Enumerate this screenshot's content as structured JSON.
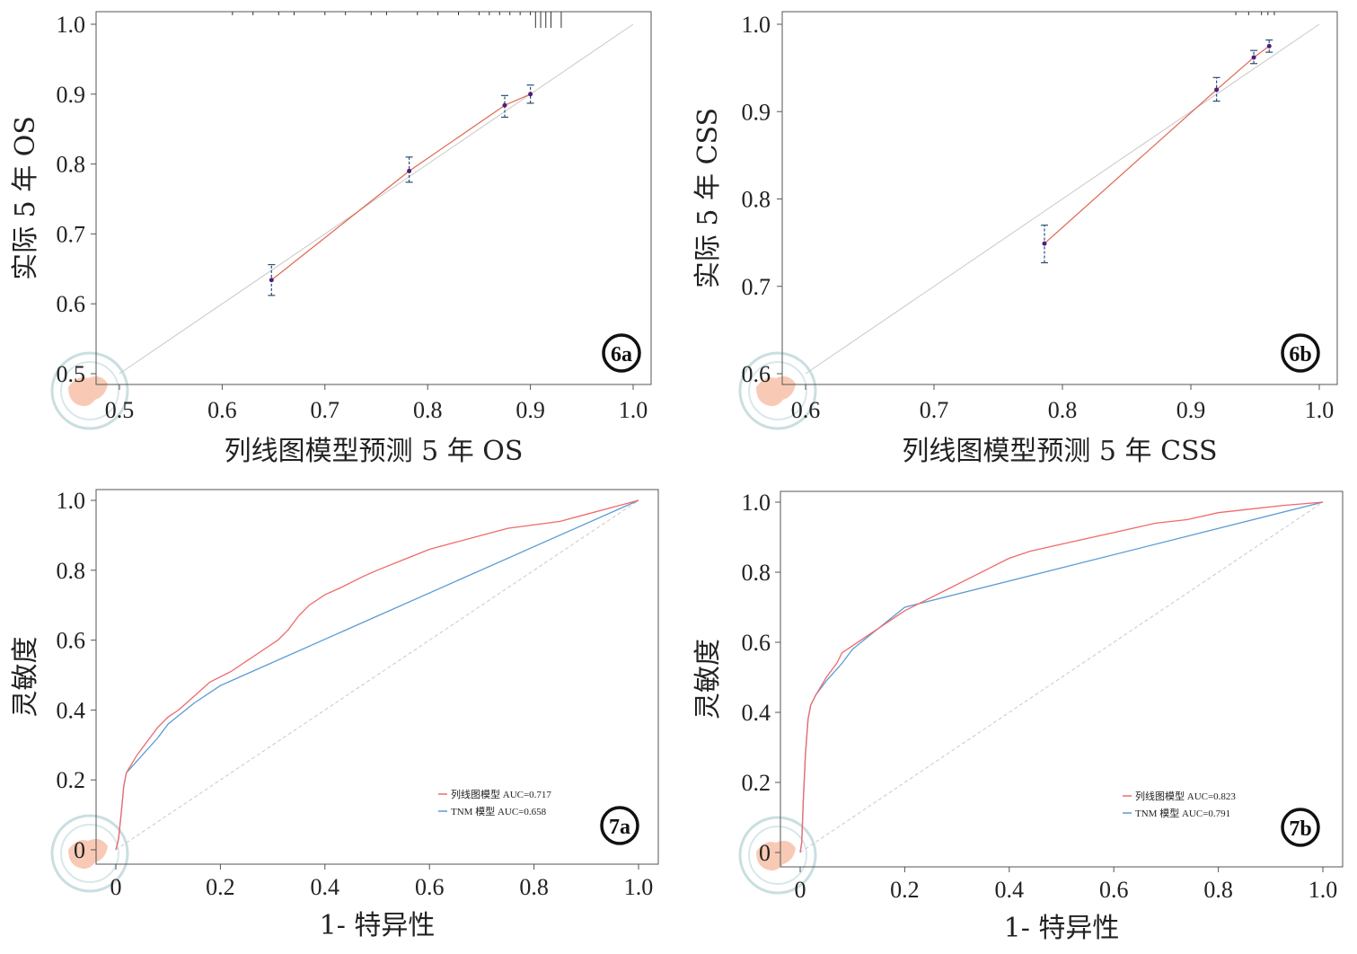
{
  "panels_meta": {
    "colors": {
      "nomogram": "#e0664f",
      "roc_nomogram": "#f06a6a",
      "roc_tnm": "#5b9bd5",
      "ideal": "#c8c8c8",
      "error_bar": "#2a4d73",
      "point": "#4b1f7a",
      "frame": "#555555"
    }
  },
  "chart_data": [
    {
      "id": "6a",
      "type": "scatter",
      "panel_label": "6a",
      "xlabel": "列线图模型预测 5 年 OS",
      "ylabel": "实际 5 年 OS",
      "xlim": [
        0.5,
        1.0
      ],
      "ylim": [
        0.5,
        1.0
      ],
      "x_ticks": [
        0.5,
        0.6,
        0.7,
        0.8,
        0.9,
        1.0
      ],
      "x_tick_labels": [
        "0.5",
        "0.6",
        "0.7",
        "0.8",
        "0.9",
        "1.0"
      ],
      "y_ticks": [
        0.5,
        0.6,
        0.7,
        0.8,
        0.9,
        1.0
      ],
      "y_tick_labels": [
        "0.5",
        "0.6",
        "0.7",
        "0.8",
        "0.9",
        "1.0"
      ],
      "points": [
        {
          "x": 0.648,
          "y": 0.634,
          "lo": 0.612,
          "hi": 0.656
        },
        {
          "x": 0.782,
          "y": 0.79,
          "lo": 0.774,
          "hi": 0.81
        },
        {
          "x": 0.875,
          "y": 0.884,
          "lo": 0.867,
          "hi": 0.898
        },
        {
          "x": 0.9,
          "y": 0.9,
          "lo": 0.887,
          "hi": 0.913
        }
      ],
      "rug_x": [
        0.61,
        0.63,
        0.655,
        0.67,
        0.7,
        0.72,
        0.745,
        0.76,
        0.79,
        0.81,
        0.83,
        0.85,
        0.86,
        0.87,
        0.88,
        0.89,
        0.9,
        0.905,
        0.91,
        0.915,
        0.92,
        0.93
      ]
    },
    {
      "id": "6b",
      "type": "scatter",
      "panel_label": "6b",
      "xlabel": "列线图模型预测 5 年 CSS",
      "ylabel": "实际 5 年 CSS",
      "xlim": [
        0.6,
        1.0
      ],
      "ylim": [
        0.6,
        1.0
      ],
      "x_ticks": [
        0.6,
        0.7,
        0.8,
        0.9,
        1.0
      ],
      "x_tick_labels": [
        "0.6",
        "0.7",
        "0.8",
        "0.9",
        "1.0"
      ],
      "y_ticks": [
        0.6,
        0.7,
        0.8,
        0.9,
        1.0
      ],
      "y_tick_labels": [
        "0.6",
        "0.7",
        "0.8",
        "0.9",
        "1.0"
      ],
      "points": [
        {
          "x": 0.786,
          "y": 0.749,
          "lo": 0.727,
          "hi": 0.77
        },
        {
          "x": 0.92,
          "y": 0.925,
          "lo": 0.912,
          "hi": 0.939
        },
        {
          "x": 0.949,
          "y": 0.962,
          "lo": 0.955,
          "hi": 0.97
        },
        {
          "x": 0.961,
          "y": 0.975,
          "lo": 0.968,
          "hi": 0.982
        }
      ],
      "rug_x": [
        0.935,
        0.945,
        0.955,
        0.96,
        0.965
      ]
    },
    {
      "id": "7a",
      "type": "line",
      "panel_label": "7a",
      "xlabel": "1- 特异性",
      "ylabel": "灵敏度",
      "xlim": [
        0,
        1
      ],
      "ylim": [
        0,
        1
      ],
      "x_ticks": [
        0,
        0.2,
        0.4,
        0.6,
        0.8,
        1.0
      ],
      "x_tick_labels": [
        "0",
        "0.2",
        "0.4",
        "0.6",
        "0.8",
        "1.0"
      ],
      "y_ticks": [
        0,
        0.2,
        0.4,
        0.6,
        0.8,
        1.0
      ],
      "y_tick_labels": [
        "0",
        "0.2",
        "0.4",
        "0.6",
        "0.8",
        "1.0"
      ],
      "legend": [
        "列线图模型 AUC=0.717",
        "TNM 模型 AUC=0.658"
      ],
      "series": [
        {
          "name": "列线图模型 AUC=0.717",
          "x": [
            0,
            0.005,
            0.01,
            0.015,
            0.02,
            0.04,
            0.06,
            0.08,
            0.1,
            0.12,
            0.15,
            0.18,
            0.22,
            0.25,
            0.28,
            0.31,
            0.33,
            0.35,
            0.37,
            0.4,
            0.43,
            0.47,
            0.5,
            0.55,
            0.6,
            0.65,
            0.7,
            0.75,
            0.8,
            0.85,
            0.9,
            0.95,
            1.0
          ],
          "y": [
            0,
            0.03,
            0.1,
            0.18,
            0.22,
            0.27,
            0.31,
            0.35,
            0.38,
            0.4,
            0.44,
            0.48,
            0.51,
            0.54,
            0.57,
            0.6,
            0.63,
            0.67,
            0.7,
            0.73,
            0.75,
            0.78,
            0.8,
            0.83,
            0.86,
            0.88,
            0.9,
            0.92,
            0.93,
            0.94,
            0.96,
            0.98,
            1.0
          ]
        },
        {
          "name": "TNM 模型 AUC=0.658",
          "x": [
            0,
            0.005,
            0.01,
            0.015,
            0.02,
            0.05,
            0.08,
            0.1,
            0.15,
            0.2,
            1.0
          ],
          "y": [
            0,
            0.03,
            0.1,
            0.18,
            0.22,
            0.27,
            0.32,
            0.36,
            0.42,
            0.47,
            1.0
          ]
        }
      ]
    },
    {
      "id": "7b",
      "type": "line",
      "panel_label": "7b",
      "xlabel": "1- 特异性",
      "ylabel": "灵敏度",
      "xlim": [
        0,
        1
      ],
      "ylim": [
        0,
        1
      ],
      "x_ticks": [
        0,
        0.2,
        0.4,
        0.6,
        0.8,
        1.0
      ],
      "x_tick_labels": [
        "0",
        "0.2",
        "0.4",
        "0.6",
        "0.8",
        "1.0"
      ],
      "y_ticks": [
        0,
        0.2,
        0.4,
        0.6,
        0.8,
        1.0
      ],
      "y_tick_labels": [
        "0",
        "0.2",
        "0.4",
        "0.6",
        "0.8",
        "1.0"
      ],
      "legend": [
        "列线图模型 AUC=0.823",
        "TNM 模型 AUC=0.791"
      ],
      "series": [
        {
          "name": "列线图模型 AUC=0.823",
          "x": [
            0,
            0.003,
            0.006,
            0.01,
            0.015,
            0.02,
            0.03,
            0.05,
            0.07,
            0.08,
            0.1,
            0.12,
            0.15,
            0.18,
            0.2,
            0.24,
            0.28,
            0.32,
            0.36,
            0.4,
            0.44,
            0.5,
            0.56,
            0.62,
            0.68,
            0.74,
            0.8,
            0.86,
            0.92,
            1.0
          ],
          "y": [
            0,
            0.03,
            0.15,
            0.28,
            0.38,
            0.42,
            0.45,
            0.5,
            0.54,
            0.57,
            0.59,
            0.61,
            0.64,
            0.67,
            0.69,
            0.72,
            0.75,
            0.78,
            0.81,
            0.84,
            0.86,
            0.88,
            0.9,
            0.92,
            0.94,
            0.95,
            0.97,
            0.98,
            0.99,
            1.0
          ]
        },
        {
          "name": "TNM 模型 AUC=0.791",
          "x": [
            0,
            0.003,
            0.006,
            0.01,
            0.015,
            0.02,
            0.03,
            0.05,
            0.08,
            0.1,
            0.15,
            0.2,
            1.0
          ],
          "y": [
            0,
            0.03,
            0.15,
            0.28,
            0.38,
            0.42,
            0.45,
            0.49,
            0.54,
            0.58,
            0.64,
            0.7,
            1.0
          ]
        }
      ]
    }
  ]
}
